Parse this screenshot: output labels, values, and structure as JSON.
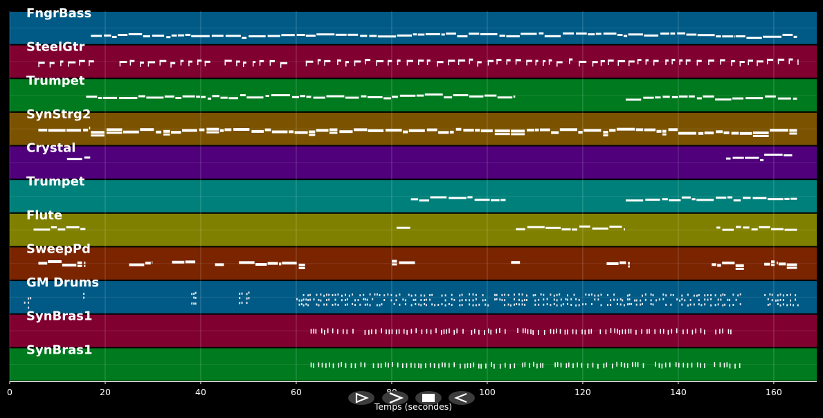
{
  "chart_data": {
    "type": "piano-roll",
    "title": "",
    "xlabel": "Temps (secondes)",
    "ylabel": "",
    "xlim": [
      0,
      169
    ],
    "xticks": [
      0,
      20,
      40,
      60,
      80,
      100,
      120,
      140,
      160
    ],
    "grid": true,
    "tracks": [
      {
        "name": "FngrBass",
        "color": "#005a85",
        "style": "line",
        "segments": [
          [
            17,
            38,
            0.7
          ],
          [
            38,
            62,
            0.72
          ],
          [
            62,
            107,
            0.68
          ],
          [
            107,
            152,
            0.68
          ],
          [
            152,
            165,
            0.72
          ]
        ]
      },
      {
        "name": "SteelGtr",
        "color": "#800030",
        "style": "dash",
        "segments": [
          [
            6,
            18,
            0.48
          ],
          [
            23,
            42,
            0.48
          ],
          [
            45,
            59,
            0.48
          ],
          [
            62,
            165,
            0.45
          ]
        ]
      },
      {
        "name": "Trumpet",
        "color": "#007a1f",
        "style": "line",
        "segments": [
          [
            16,
            40,
            0.52
          ],
          [
            40,
            80,
            0.52
          ],
          [
            80,
            106,
            0.5
          ],
          [
            129,
            165,
            0.55
          ]
        ]
      },
      {
        "name": "SynStrg2",
        "color": "#7a5200",
        "style": "thick",
        "segments": [
          [
            6,
            17,
            0.48
          ],
          [
            17,
            45,
            0.52
          ],
          [
            45,
            75,
            0.52
          ],
          [
            75,
            110,
            0.52
          ],
          [
            110,
            140,
            0.52
          ],
          [
            140,
            165,
            0.55
          ]
        ]
      },
      {
        "name": "Crystal",
        "color": "#4f007a",
        "style": "line",
        "segments": [
          [
            12,
            17,
            0.35
          ],
          [
            150,
            158,
            0.38
          ],
          [
            158,
            164,
            0.25
          ]
        ]
      },
      {
        "name": "Trumpet",
        "color": "#00807a",
        "style": "line",
        "segments": [
          [
            84,
            104,
            0.55
          ],
          [
            129,
            165,
            0.55
          ]
        ]
      },
      {
        "name": "Flute",
        "color": "#808000",
        "style": "line",
        "segments": [
          [
            5,
            16,
            0.42
          ],
          [
            81,
            84,
            0.38
          ],
          [
            106,
            129,
            0.42
          ],
          [
            148,
            165,
            0.42
          ]
        ]
      },
      {
        "name": "SweepPd",
        "color": "#7a2400",
        "style": "thick",
        "segments": [
          [
            6,
            8,
            0.48
          ],
          [
            8,
            11,
            0.42
          ],
          [
            11,
            16,
            0.48
          ],
          [
            25,
            30,
            0.48
          ],
          [
            34,
            39,
            0.45
          ],
          [
            43,
            45,
            0.48
          ],
          [
            48,
            54,
            0.48
          ],
          [
            54,
            57,
            0.44
          ],
          [
            57,
            62,
            0.48
          ],
          [
            80,
            85,
            0.42
          ],
          [
            105,
            107,
            0.42
          ],
          [
            125,
            130,
            0.42
          ],
          [
            147,
            152,
            0.48
          ],
          [
            152,
            154,
            0.48
          ],
          [
            158,
            161,
            0.44
          ],
          [
            161,
            165,
            0.48
          ]
        ]
      },
      {
        "name": "GM Drums",
        "color": "#005a85",
        "style": "dots",
        "segments": [
          [
            3,
            5,
            0.65
          ],
          [
            15,
            16,
            0.5
          ],
          [
            38,
            39,
            0.5
          ],
          [
            48,
            50,
            0.5
          ],
          [
            60,
            153,
            0.55
          ],
          [
            158,
            165,
            0.55
          ]
        ]
      },
      {
        "name": "SynBras1",
        "color": "#800030",
        "style": "ticks",
        "segments": [
          [
            63,
            153,
            0.45
          ]
        ]
      },
      {
        "name": "SynBras1",
        "color": "#007a1f",
        "style": "ticks",
        "segments": [
          [
            63,
            153,
            0.45
          ]
        ]
      }
    ]
  },
  "controls": {
    "play_label": "play",
    "forward_label": "forward",
    "stop_label": "stop",
    "back_label": "back"
  }
}
